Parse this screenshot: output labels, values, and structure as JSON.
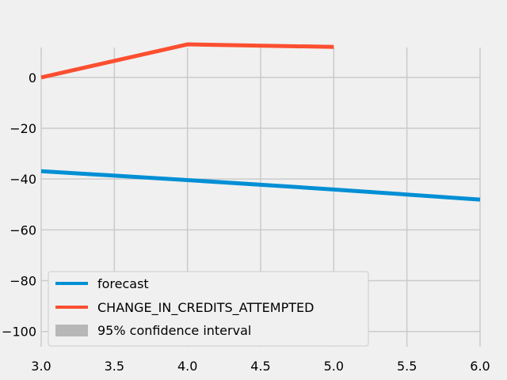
{
  "chart_data": {
    "type": "line",
    "title": "",
    "xlabel": "",
    "ylabel": "",
    "xlim": [
      3.0,
      6.0
    ],
    "ylim": [
      -106,
      18
    ],
    "grid": true,
    "legend_position": "lower-left",
    "x_ticks": [
      3.0,
      3.5,
      4.0,
      4.5,
      5.0,
      5.5,
      6.0
    ],
    "x_tick_labels": [
      "3.0",
      "3.5",
      "4.0",
      "4.5",
      "5.0",
      "5.5",
      "6.0"
    ],
    "y_ticks": [
      0,
      -20,
      -40,
      -60,
      -80,
      -100
    ],
    "y_tick_labels": [
      "0",
      "−20",
      "−40",
      "−60",
      "−80",
      "−100"
    ],
    "series": [
      {
        "name": "forecast",
        "color": "#008fd5",
        "x": [
          3,
          4,
          5,
          6
        ],
        "y": [
          -36.9,
          -40.4,
          -44.1,
          -48.1
        ]
      },
      {
        "name": "CHANGE_IN_CREDITS_ATTEMPTED",
        "color": "#fc4f30",
        "x": [
          3,
          4,
          5
        ],
        "y": [
          0,
          13,
          12
        ]
      }
    ],
    "confidence_interval": {
      "name": "95% confidence interval",
      "color": "#b7b7b7"
    },
    "colors": {
      "background": "#f0f0f0",
      "grid": "#cbcbcb"
    }
  }
}
